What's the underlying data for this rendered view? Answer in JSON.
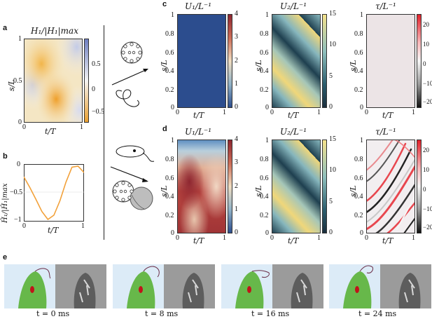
{
  "panel_labels": {
    "a": "a",
    "b": "b",
    "c": "c",
    "d": "d",
    "e": "e"
  },
  "panel_a": {
    "title": "H_1/|H_1|_max",
    "title_display": "H₁/|H₁|max",
    "xlabel": "t/T",
    "ylabel": "s/L",
    "x_ticks": [
      "0",
      "1"
    ],
    "y_ticks": [
      "0",
      "0.5",
      "1"
    ],
    "colorbar_ticks": [
      "0.5",
      "0",
      "−0.5"
    ]
  },
  "panel_b": {
    "ylabel": "Ĥ₁/|Ĥ₁|max",
    "xlabel": "t/T",
    "x_ticks": [
      "0",
      "1"
    ],
    "y_ticks": [
      "0",
      "−0.5",
      "−1"
    ]
  },
  "panel_c": {
    "titles": [
      "U₁/L⁻¹",
      "U₂/L⁻¹",
      "τ/L⁻¹"
    ],
    "xlabel": "t/T",
    "ylabel": "s/L",
    "x_ticks": [
      "0",
      "1"
    ],
    "y_ticks": [
      "0",
      "0.2",
      "0.4",
      "0.6",
      "0.8",
      "1"
    ],
    "cb1_ticks": [
      "4",
      "3",
      "2",
      "1",
      "0"
    ],
    "cb2_ticks": [
      "15",
      "10",
      "5",
      "0"
    ],
    "cb3_ticks": [
      "20",
      "10",
      "0",
      "−10",
      "−20"
    ]
  },
  "panel_d": {
    "titles": [
      "U₁/L⁻¹",
      "U₂/L⁻¹",
      "τ/L⁻¹"
    ],
    "xlabel": "t/T",
    "ylabel": "s/L",
    "x_ticks": [
      "0",
      "1"
    ],
    "y_ticks": [
      "0",
      "0.2",
      "0.4",
      "0.6",
      "0.8",
      "1"
    ],
    "cb1_ticks": [
      "4",
      "3",
      "2",
      "1",
      "0"
    ],
    "cb2_ticks": [
      "15",
      "10",
      "5",
      "0"
    ],
    "cb3_ticks": [
      "20",
      "10",
      "0",
      "−10",
      "−20"
    ]
  },
  "panel_e": {
    "frames": [
      "t = 0 ms",
      "t = 8 ms",
      "t = 16 ms",
      "t = 24 ms"
    ]
  },
  "colors": {
    "blue": "#2b4c8c",
    "teal": "#1f4a5a",
    "yellow": "#f0d77a",
    "red": "#e0202a",
    "orange": "#f2a13a"
  },
  "chart_data": [
    {
      "type": "heatmap",
      "title": "H₁/|H₁|max",
      "xlabel": "t/T",
      "ylabel": "s/L",
      "xlim": [
        0,
        1
      ],
      "ylim": [
        0,
        1
      ],
      "colorbar_range": [
        -0.5,
        0.5
      ]
    },
    {
      "type": "line",
      "xlabel": "t/T",
      "ylabel": "Ĥ₁/|Ĥ₁|max",
      "xlim": [
        0,
        1
      ],
      "ylim": [
        -1,
        0
      ],
      "x": [
        0,
        0.1,
        0.2,
        0.3,
        0.4,
        0.5,
        0.6,
        0.7,
        0.8,
        0.9,
        1.0
      ],
      "series": [
        {
          "values": [
            -0.2,
            -0.4,
            -0.62,
            -0.85,
            -1.0,
            -0.92,
            -0.65,
            -0.3,
            -0.02,
            0.0,
            -0.12
          ]
        }
      ]
    },
    {
      "type": "heatmap",
      "title": "U₁/L⁻¹ (c)",
      "colorbar_range": [
        0,
        4
      ]
    },
    {
      "type": "heatmap",
      "title": "U₂/L⁻¹ (c)",
      "colorbar_range": [
        0,
        15
      ]
    },
    {
      "type": "heatmap",
      "title": "τ/L⁻¹ (c)",
      "colorbar_range": [
        -20,
        20
      ]
    },
    {
      "type": "heatmap",
      "title": "U₁/L⁻¹ (d)",
      "colorbar_range": [
        0,
        4
      ]
    },
    {
      "type": "heatmap",
      "title": "U₂/L⁻¹ (d)",
      "colorbar_range": [
        0,
        15
      ]
    },
    {
      "type": "heatmap",
      "title": "τ/L⁻¹ (d)",
      "colorbar_range": [
        -20,
        20
      ]
    }
  ]
}
